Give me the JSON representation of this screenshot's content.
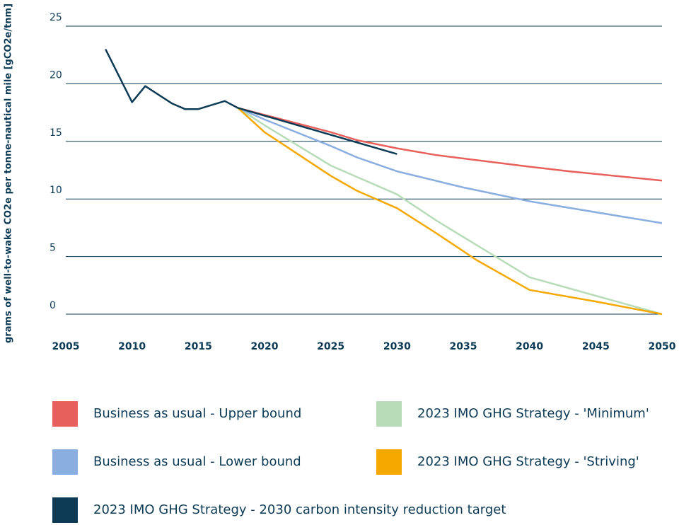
{
  "chart_data": {
    "type": "line",
    "y_label": "grams of well-to-wake CO2e per tonne-nautical mile [gCO2e/tnm]",
    "xlim": [
      2005,
      2050
    ],
    "xticks": [
      2005,
      2010,
      2015,
      2020,
      2025,
      2030,
      2035,
      2040,
      2045,
      2050
    ],
    "ylim": [
      0,
      25
    ],
    "yticks": [
      0,
      5,
      10,
      15,
      20,
      25
    ],
    "grid": true,
    "series": [
      {
        "name": "Business as usual - Upper bound",
        "color": "#e8605c",
        "x": [
          2018,
          2020,
          2025,
          2027,
          2030,
          2033,
          2040,
          2043,
          2050
        ],
        "values": [
          17.9,
          17.3,
          15.8,
          15.1,
          14.4,
          13.8,
          12.8,
          12.4,
          11.6
        ]
      },
      {
        "name": "2023 IMO GHG Strategy - 'Minimum'",
        "color": "#b8dbb8",
        "x": [
          2018,
          2020,
          2025,
          2030,
          2033,
          2037,
          2040,
          2045,
          2050
        ],
        "values": [
          17.9,
          16.4,
          12.9,
          10.4,
          8.1,
          5.3,
          3.2,
          1.6,
          0
        ]
      },
      {
        "name": "Business as usual - Lower bound",
        "color": "#8aaee0",
        "x": [
          2018,
          2020,
          2025,
          2027,
          2030,
          2035,
          2040,
          2050
        ],
        "values": [
          17.9,
          16.9,
          14.6,
          13.6,
          12.4,
          11.0,
          9.8,
          7.9
        ]
      },
      {
        "name": "2023 IMO GHG Strategy - 'Striving'",
        "color": "#f5a800",
        "x": [
          2018,
          2020,
          2025,
          2027,
          2030,
          2033,
          2036,
          2040,
          2045,
          2050
        ],
        "values": [
          17.9,
          15.8,
          12.0,
          10.7,
          9.2,
          7.0,
          4.7,
          2.1,
          1.1,
          0
        ]
      },
      {
        "name": "2023 IMO GHG Strategy - 2030 carbon intensity reduction target",
        "color": "#0d3b55",
        "x": [
          2008,
          2010,
          2011,
          2013,
          2014,
          2015,
          2017,
          2018,
          2030
        ],
        "values": [
          23,
          18.4,
          19.8,
          18.3,
          17.8,
          17.8,
          18.5,
          17.9,
          13.9
        ]
      }
    ]
  }
}
